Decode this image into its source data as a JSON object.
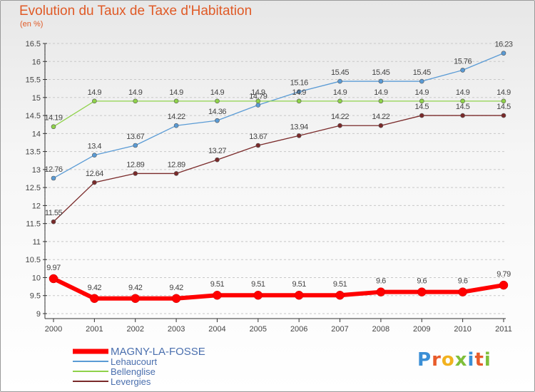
{
  "title": "Evolution du Taux de Taxe d'Habitation",
  "unit": "(en %)",
  "logo_text": "Proxiti",
  "colors": {
    "title": "#e05a26",
    "axis": "#333333",
    "grid": "#c8c8c8",
    "labels": "#444444"
  },
  "chart_data": {
    "type": "line",
    "x": [
      "2000",
      "2001",
      "2002",
      "2003",
      "2004",
      "2005",
      "2006",
      "2007",
      "2008",
      "2009",
      "2010",
      "2011"
    ],
    "ylim": [
      9,
      16.5
    ],
    "yticks": [
      "9",
      "9.5",
      "10",
      "10.5",
      "11",
      "11.5",
      "12",
      "12.5",
      "13",
      "13.5",
      "14",
      "14.5",
      "15",
      "15.5",
      "16",
      "16.5"
    ],
    "grid": "horizontal dashed",
    "legend_position": "bottom-left",
    "series": [
      {
        "name": "MAGNY-LA-FOSSE",
        "color": "#ff0000",
        "emphasis": true,
        "values": [
          9.97,
          9.42,
          9.42,
          9.42,
          9.51,
          9.51,
          9.51,
          9.51,
          9.6,
          9.6,
          9.6,
          9.79
        ],
        "labels": [
          "9.97",
          "9.42",
          "9.42",
          "9.42",
          "9.51",
          "9.51",
          "9.51",
          "9.51",
          "9.6",
          "9.6",
          "9.6",
          "9.79"
        ]
      },
      {
        "name": "Lehaucourt",
        "color": "#5a9bd5",
        "emphasis": false,
        "values": [
          12.76,
          13.4,
          13.67,
          14.22,
          14.36,
          14.79,
          15.16,
          15.45,
          15.45,
          15.45,
          15.76,
          16.23
        ],
        "labels": [
          "12.76",
          "13.4",
          "13.67",
          "14.22",
          "14.36",
          "14.79",
          "15.16",
          "15.45",
          "15.45",
          "15.45",
          "15.76",
          "16.23"
        ]
      },
      {
        "name": "Bellenglise",
        "color": "#8fd24a",
        "emphasis": false,
        "values": [
          14.19,
          14.9,
          14.9,
          14.9,
          14.9,
          14.9,
          14.9,
          14.9,
          14.9,
          14.9,
          14.9,
          14.9
        ],
        "labels": [
          "14.19",
          "14.9",
          "14.9",
          "14.9",
          "14.9",
          "14.9",
          "14.9",
          "14.9",
          "14.9",
          "14.9",
          "14.9",
          "14.9"
        ]
      },
      {
        "name": "Levergies",
        "color": "#7a2a2a",
        "emphasis": false,
        "values": [
          11.55,
          12.64,
          12.89,
          12.89,
          13.27,
          13.67,
          13.94,
          14.22,
          14.22,
          14.5,
          14.5,
          14.5
        ],
        "labels": [
          "11.55",
          "12.64",
          "12.89",
          "12.89",
          "13.27",
          "13.67",
          "13.94",
          "14.22",
          "14.22",
          "14.5",
          "14.5",
          "14.5"
        ]
      }
    ]
  }
}
